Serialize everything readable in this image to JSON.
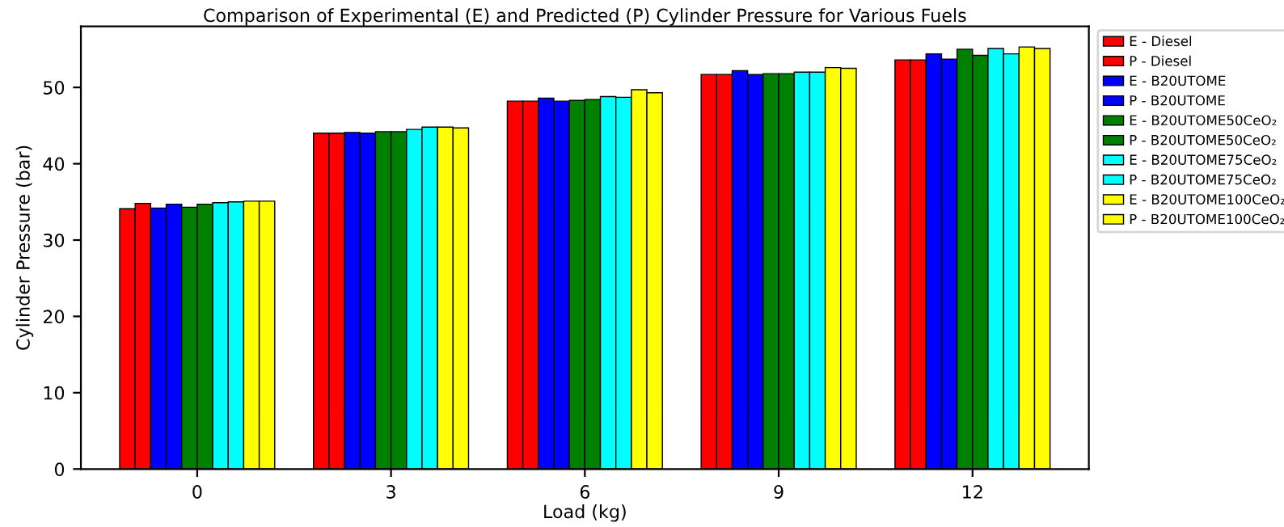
{
  "chart_data": {
    "type": "bar",
    "title": "Comparison of Experimental (E) and Predicted (P) Cylinder Pressure for Various Fuels",
    "xlabel": "Load (kg)",
    "ylabel": "Cylinder Pressure (bar)",
    "categories": [
      "0",
      "3",
      "6",
      "9",
      "12"
    ],
    "series": [
      {
        "name": "E - Diesel",
        "color": "#ff0000",
        "values": [
          34.1,
          44.0,
          48.2,
          51.7,
          53.6
        ]
      },
      {
        "name": "P - Diesel",
        "color": "#ff0000",
        "values": [
          34.8,
          44.0,
          48.2,
          51.7,
          53.6
        ]
      },
      {
        "name": "E - B20UTOME",
        "color": "#0000ff",
        "values": [
          34.2,
          44.1,
          48.6,
          52.2,
          54.4
        ]
      },
      {
        "name": "P - B20UTOME",
        "color": "#0000ff",
        "values": [
          34.7,
          44.0,
          48.2,
          51.7,
          53.7
        ]
      },
      {
        "name": "E - B20UTOME50CeO₂",
        "color": "#008000",
        "values": [
          34.3,
          44.2,
          48.3,
          51.8,
          55.0
        ]
      },
      {
        "name": "P - B20UTOME50CeO₂",
        "color": "#008000",
        "values": [
          34.7,
          44.2,
          48.4,
          51.8,
          54.2
        ]
      },
      {
        "name": "E - B20UTOME75CeO₂",
        "color": "#00ffff",
        "values": [
          34.9,
          44.5,
          48.8,
          52.0,
          55.1
        ]
      },
      {
        "name": "P - B20UTOME75CeO₂",
        "color": "#00ffff",
        "values": [
          35.0,
          44.8,
          48.7,
          52.0,
          54.4
        ]
      },
      {
        "name": "E - B20UTOME100CeO₂",
        "color": "#ffff00",
        "values": [
          35.1,
          44.8,
          49.7,
          52.6,
          55.3
        ]
      },
      {
        "name": "P - B20UTOME100CeO₂",
        "color": "#ffff00",
        "values": [
          35.1,
          44.7,
          49.3,
          52.5,
          55.1
        ]
      }
    ],
    "ylim": [
      0,
      58
    ],
    "yticks": [
      0,
      10,
      20,
      30,
      40,
      50
    ],
    "grid": false,
    "legend": "right"
  }
}
